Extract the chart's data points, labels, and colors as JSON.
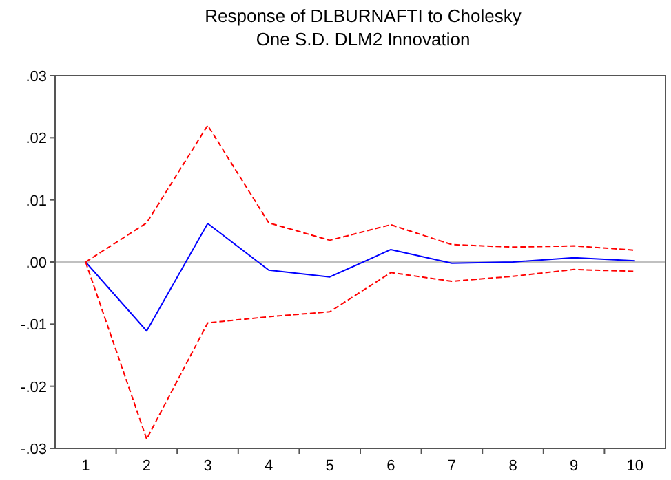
{
  "chart_data": {
    "type": "line",
    "title": "Response of DLBURNAFTI to Cholesky\nOne S.D. DLM2 Innovation",
    "categories": [
      "1",
      "2",
      "3",
      "4",
      "5",
      "6",
      "7",
      "8",
      "9",
      "10"
    ],
    "series": [
      {
        "color": "#0000ff",
        "line_style": "solid",
        "values": [
          0,
          -0.0111,
          0.0062,
          -0.0013,
          -0.0024,
          0.002,
          -0.0002,
          0,
          0.0007,
          0.0002
        ]
      },
      {
        "color": "#ff0000",
        "line_style": "dashed",
        "values": [
          0,
          0.0063,
          0.022,
          0.0063,
          0.0035,
          0.006,
          0.0028,
          0.0024,
          0.0026,
          0.0019
        ]
      },
      {
        "color": "#ff0000",
        "line_style": "dashed",
        "values": [
          0,
          -0.0285,
          -0.0098,
          -0.0088,
          -0.008,
          -0.0017,
          -0.0031,
          -0.0023,
          -0.0012,
          -0.0015
        ]
      }
    ],
    "ylim": [
      -0.03,
      0.03
    ],
    "yticks": [
      {
        "value": -0.03,
        "label": "-.03"
      },
      {
        "value": -0.02,
        "label": "-.02"
      },
      {
        "value": -0.01,
        "label": "-.01"
      },
      {
        "value": 0,
        "label": ".00"
      },
      {
        "value": 0.01,
        "label": ".01"
      },
      {
        "value": 0.02,
        "label": ".02"
      },
      {
        "value": 0.03,
        "label": ".03"
      }
    ],
    "ref_lines": [
      {
        "axis": "y",
        "value": 0,
        "color": "#c0c0c0"
      }
    ],
    "grid": false,
    "marker": "none"
  }
}
